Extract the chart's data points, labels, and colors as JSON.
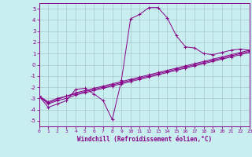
{
  "background_color": "#c8eef0",
  "grid_color": "#a8c8cc",
  "line_color": "#880088",
  "xlabel": "Windchill (Refroidissement éolien,°C)",
  "xlim": [
    0,
    23
  ],
  "ylim": [
    -5.5,
    5.5
  ],
  "yticks": [
    -5,
    -4,
    -3,
    -2,
    -1,
    0,
    1,
    2,
    3,
    4,
    5
  ],
  "xticks": [
    0,
    1,
    2,
    3,
    4,
    5,
    6,
    7,
    8,
    9,
    10,
    11,
    12,
    13,
    14,
    15,
    16,
    17,
    18,
    19,
    20,
    21,
    22,
    23
  ],
  "series1_x": [
    0,
    1,
    2,
    3,
    4,
    5,
    6,
    7,
    8,
    9,
    10,
    11,
    12,
    13,
    14,
    15,
    16,
    17,
    18,
    19,
    20,
    21,
    22,
    23
  ],
  "series1_y": [
    -2.8,
    -3.8,
    -3.5,
    -3.2,
    -2.2,
    -2.1,
    -2.6,
    -3.2,
    -4.9,
    -1.4,
    4.1,
    4.5,
    5.1,
    5.1,
    4.2,
    2.6,
    1.6,
    1.5,
    1.0,
    0.9,
    1.1,
    1.3,
    1.4,
    1.3
  ],
  "series2_x": [
    0,
    1,
    2,
    3,
    4,
    5,
    6,
    7,
    8,
    9,
    10,
    11,
    12,
    13,
    14,
    15,
    16,
    17,
    18,
    19,
    20,
    21,
    22,
    23
  ],
  "series2_y": [
    -2.8,
    -3.5,
    -3.2,
    -3.0,
    -2.7,
    -2.5,
    -2.3,
    -2.1,
    -1.9,
    -1.7,
    -1.5,
    -1.3,
    -1.1,
    -0.9,
    -0.7,
    -0.5,
    -0.3,
    -0.1,
    0.1,
    0.3,
    0.5,
    0.7,
    0.9,
    1.1
  ],
  "series3_x": [
    0,
    1,
    2,
    3,
    4,
    5,
    6,
    7,
    8,
    9,
    10,
    11,
    12,
    13,
    14,
    15,
    16,
    17,
    18,
    19,
    20,
    21,
    22,
    23
  ],
  "series3_y": [
    -2.8,
    -3.4,
    -3.1,
    -2.8,
    -2.6,
    -2.4,
    -2.2,
    -2.0,
    -1.8,
    -1.6,
    -1.4,
    -1.2,
    -1.0,
    -0.8,
    -0.6,
    -0.4,
    -0.2,
    0.0,
    0.2,
    0.4,
    0.6,
    0.8,
    1.0,
    1.2
  ],
  "series4_x": [
    0,
    1,
    2,
    3,
    4,
    5,
    6,
    7,
    8,
    9,
    10,
    11,
    12,
    13,
    14,
    15,
    16,
    17,
    18,
    19,
    20,
    21,
    22,
    23
  ],
  "series4_y": [
    -2.8,
    -3.3,
    -3.0,
    -2.8,
    -2.5,
    -2.3,
    -2.1,
    -1.9,
    -1.7,
    -1.5,
    -1.3,
    -1.1,
    -0.9,
    -0.7,
    -0.5,
    -0.3,
    -0.1,
    0.1,
    0.3,
    0.5,
    0.7,
    0.9,
    1.1,
    1.3
  ]
}
